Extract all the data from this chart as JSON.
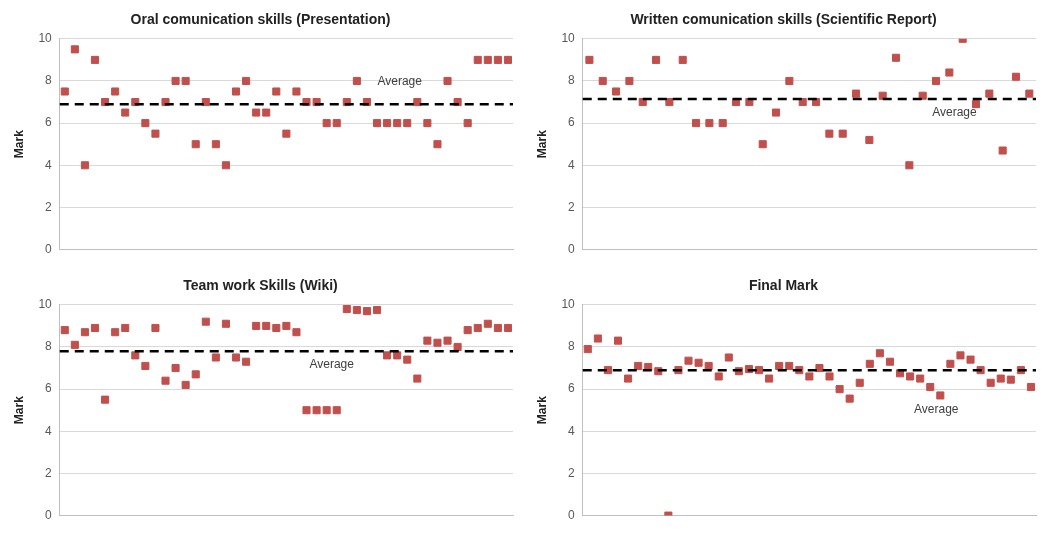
{
  "chart_data": [
    {
      "type": "scatter",
      "title": "Oral comunication skills (Presentation)",
      "ylabel": "Mark",
      "categories": [
        null,
        null,
        null,
        null,
        null,
        null,
        null,
        null,
        null,
        null,
        null,
        null,
        null,
        null,
        null,
        null,
        null,
        null,
        null,
        null,
        null,
        null,
        null,
        null,
        null,
        null,
        null,
        null,
        null,
        null,
        null,
        null,
        null,
        null,
        null,
        null,
        null,
        null,
        null,
        null,
        null,
        null,
        null,
        null,
        null
      ],
      "series": [
        {
          "color": "#c0504d",
          "values": [
            7.5,
            9.5,
            4,
            9,
            7,
            7.5,
            6.5,
            7,
            6,
            5.5,
            7,
            8,
            8,
            5,
            7,
            5,
            4,
            7.5,
            8,
            6.5,
            6.5,
            7.5,
            5.5,
            7.5,
            7,
            7,
            6,
            6,
            7,
            8,
            7,
            6,
            6,
            6,
            6,
            7,
            6,
            5,
            8,
            7,
            6,
            9,
            9,
            9,
            9
          ]
        }
      ],
      "ylim": [
        0,
        10
      ],
      "yticks": [
        0,
        2,
        4,
        6,
        8,
        10
      ],
      "grid": "y",
      "marker": "square",
      "legend": false,
      "ref_lines": [
        {
          "axis": "y",
          "value": 6.9,
          "label": "Average",
          "color": "#000000",
          "line_style": "dashed"
        }
      ]
    },
    {
      "type": "scatter",
      "title": "Written comunication skills (Scientific Report)",
      "ylabel": "Mark",
      "categories": [
        null,
        null,
        null,
        null,
        null,
        null,
        null,
        null,
        null,
        null,
        null,
        null,
        null,
        null,
        null,
        null,
        null,
        null,
        null,
        null,
        null,
        null,
        null,
        null,
        null,
        null,
        null,
        null,
        null,
        null,
        null,
        null,
        null,
        null
      ],
      "series": [
        {
          "color": "#c0504d",
          "values": [
            9,
            8,
            7.5,
            8,
            7,
            9,
            7,
            9,
            6,
            6,
            6,
            7,
            7,
            5,
            6.5,
            8,
            7,
            7,
            5.5,
            5.5,
            7.4,
            5.2,
            7.3,
            9.1,
            4,
            7.3,
            8,
            8.4,
            10,
            6.9,
            7.4,
            4.7,
            8.2,
            7.4
          ]
        }
      ],
      "ylim": [
        0,
        10
      ],
      "yticks": [
        0,
        2,
        4,
        6,
        8,
        10
      ],
      "grid": "y",
      "marker": "square",
      "legend": false,
      "ref_lines": [
        {
          "axis": "y",
          "value": 7.15,
          "label": "Average",
          "color": "#000000",
          "line_style": "dashed"
        }
      ]
    },
    {
      "type": "scatter",
      "title": "Team work Skills (Wiki)",
      "ylabel": "Mark",
      "categories": [
        null,
        null,
        null,
        null,
        null,
        null,
        null,
        null,
        null,
        null,
        null,
        null,
        null,
        null,
        null,
        null,
        null,
        null,
        null,
        null,
        null,
        null,
        null,
        null,
        null,
        null,
        null,
        null,
        null,
        null,
        null,
        null,
        null,
        null,
        null,
        null,
        null,
        null,
        null,
        null,
        null,
        null,
        null,
        null,
        null
      ],
      "series": [
        {
          "color": "#c0504d",
          "values": [
            8.8,
            8.1,
            8.7,
            8.9,
            5.5,
            8.7,
            8.9,
            7.6,
            7.1,
            8.9,
            6.4,
            7,
            6.2,
            6.7,
            9.2,
            7.5,
            9.1,
            7.5,
            7.3,
            9,
            9,
            8.9,
            9,
            8.7,
            5,
            5,
            5,
            5,
            9.8,
            9.75,
            9.7,
            9.75,
            7.6,
            7.6,
            7.4,
            6.5,
            8.3,
            8.2,
            8.3,
            8,
            8.8,
            8.9,
            9.1,
            8.9,
            8.9
          ]
        }
      ],
      "ylim": [
        0,
        10
      ],
      "yticks": [
        0,
        2,
        4,
        6,
        8,
        10
      ],
      "grid": "y",
      "marker": "square",
      "legend": false,
      "ref_lines": [
        {
          "axis": "y",
          "value": 7.8,
          "label": "Average",
          "color": "#000000",
          "line_style": "dashed"
        }
      ]
    },
    {
      "type": "scatter",
      "title": "Final Mark",
      "ylabel": "Mark",
      "categories": [
        null,
        null,
        null,
        null,
        null,
        null,
        null,
        null,
        null,
        null,
        null,
        null,
        null,
        null,
        null,
        null,
        null,
        null,
        null,
        null,
        null,
        null,
        null,
        null,
        null,
        null,
        null,
        null,
        null,
        null,
        null,
        null,
        null,
        null,
        null,
        null,
        null,
        null,
        null,
        null,
        null,
        null,
        null,
        null,
        null
      ],
      "series": [
        {
          "color": "#c0504d",
          "values": [
            7.9,
            8.4,
            6.9,
            8.3,
            6.5,
            7.1,
            7.05,
            6.85,
            0,
            6.9,
            7.35,
            7.25,
            7.1,
            6.6,
            7.5,
            6.85,
            6.95,
            6.9,
            6.5,
            7.1,
            7.1,
            6.9,
            6.6,
            7,
            6.6,
            6,
            5.55,
            6.3,
            7.2,
            7.7,
            7.3,
            6.75,
            6.6,
            6.5,
            6.1,
            5.7,
            7.2,
            7.6,
            7.4,
            6.9,
            6.3,
            6.5,
            6.45,
            6.9,
            6.1
          ]
        }
      ],
      "ylim": [
        0,
        10
      ],
      "yticks": [
        0,
        2,
        4,
        6,
        8,
        10
      ],
      "grid": "y",
      "marker": "square",
      "legend": false,
      "ref_lines": [
        {
          "axis": "y",
          "value": 6.9,
          "label": "Average",
          "color": "#000000",
          "line_style": "dashed"
        }
      ]
    }
  ]
}
